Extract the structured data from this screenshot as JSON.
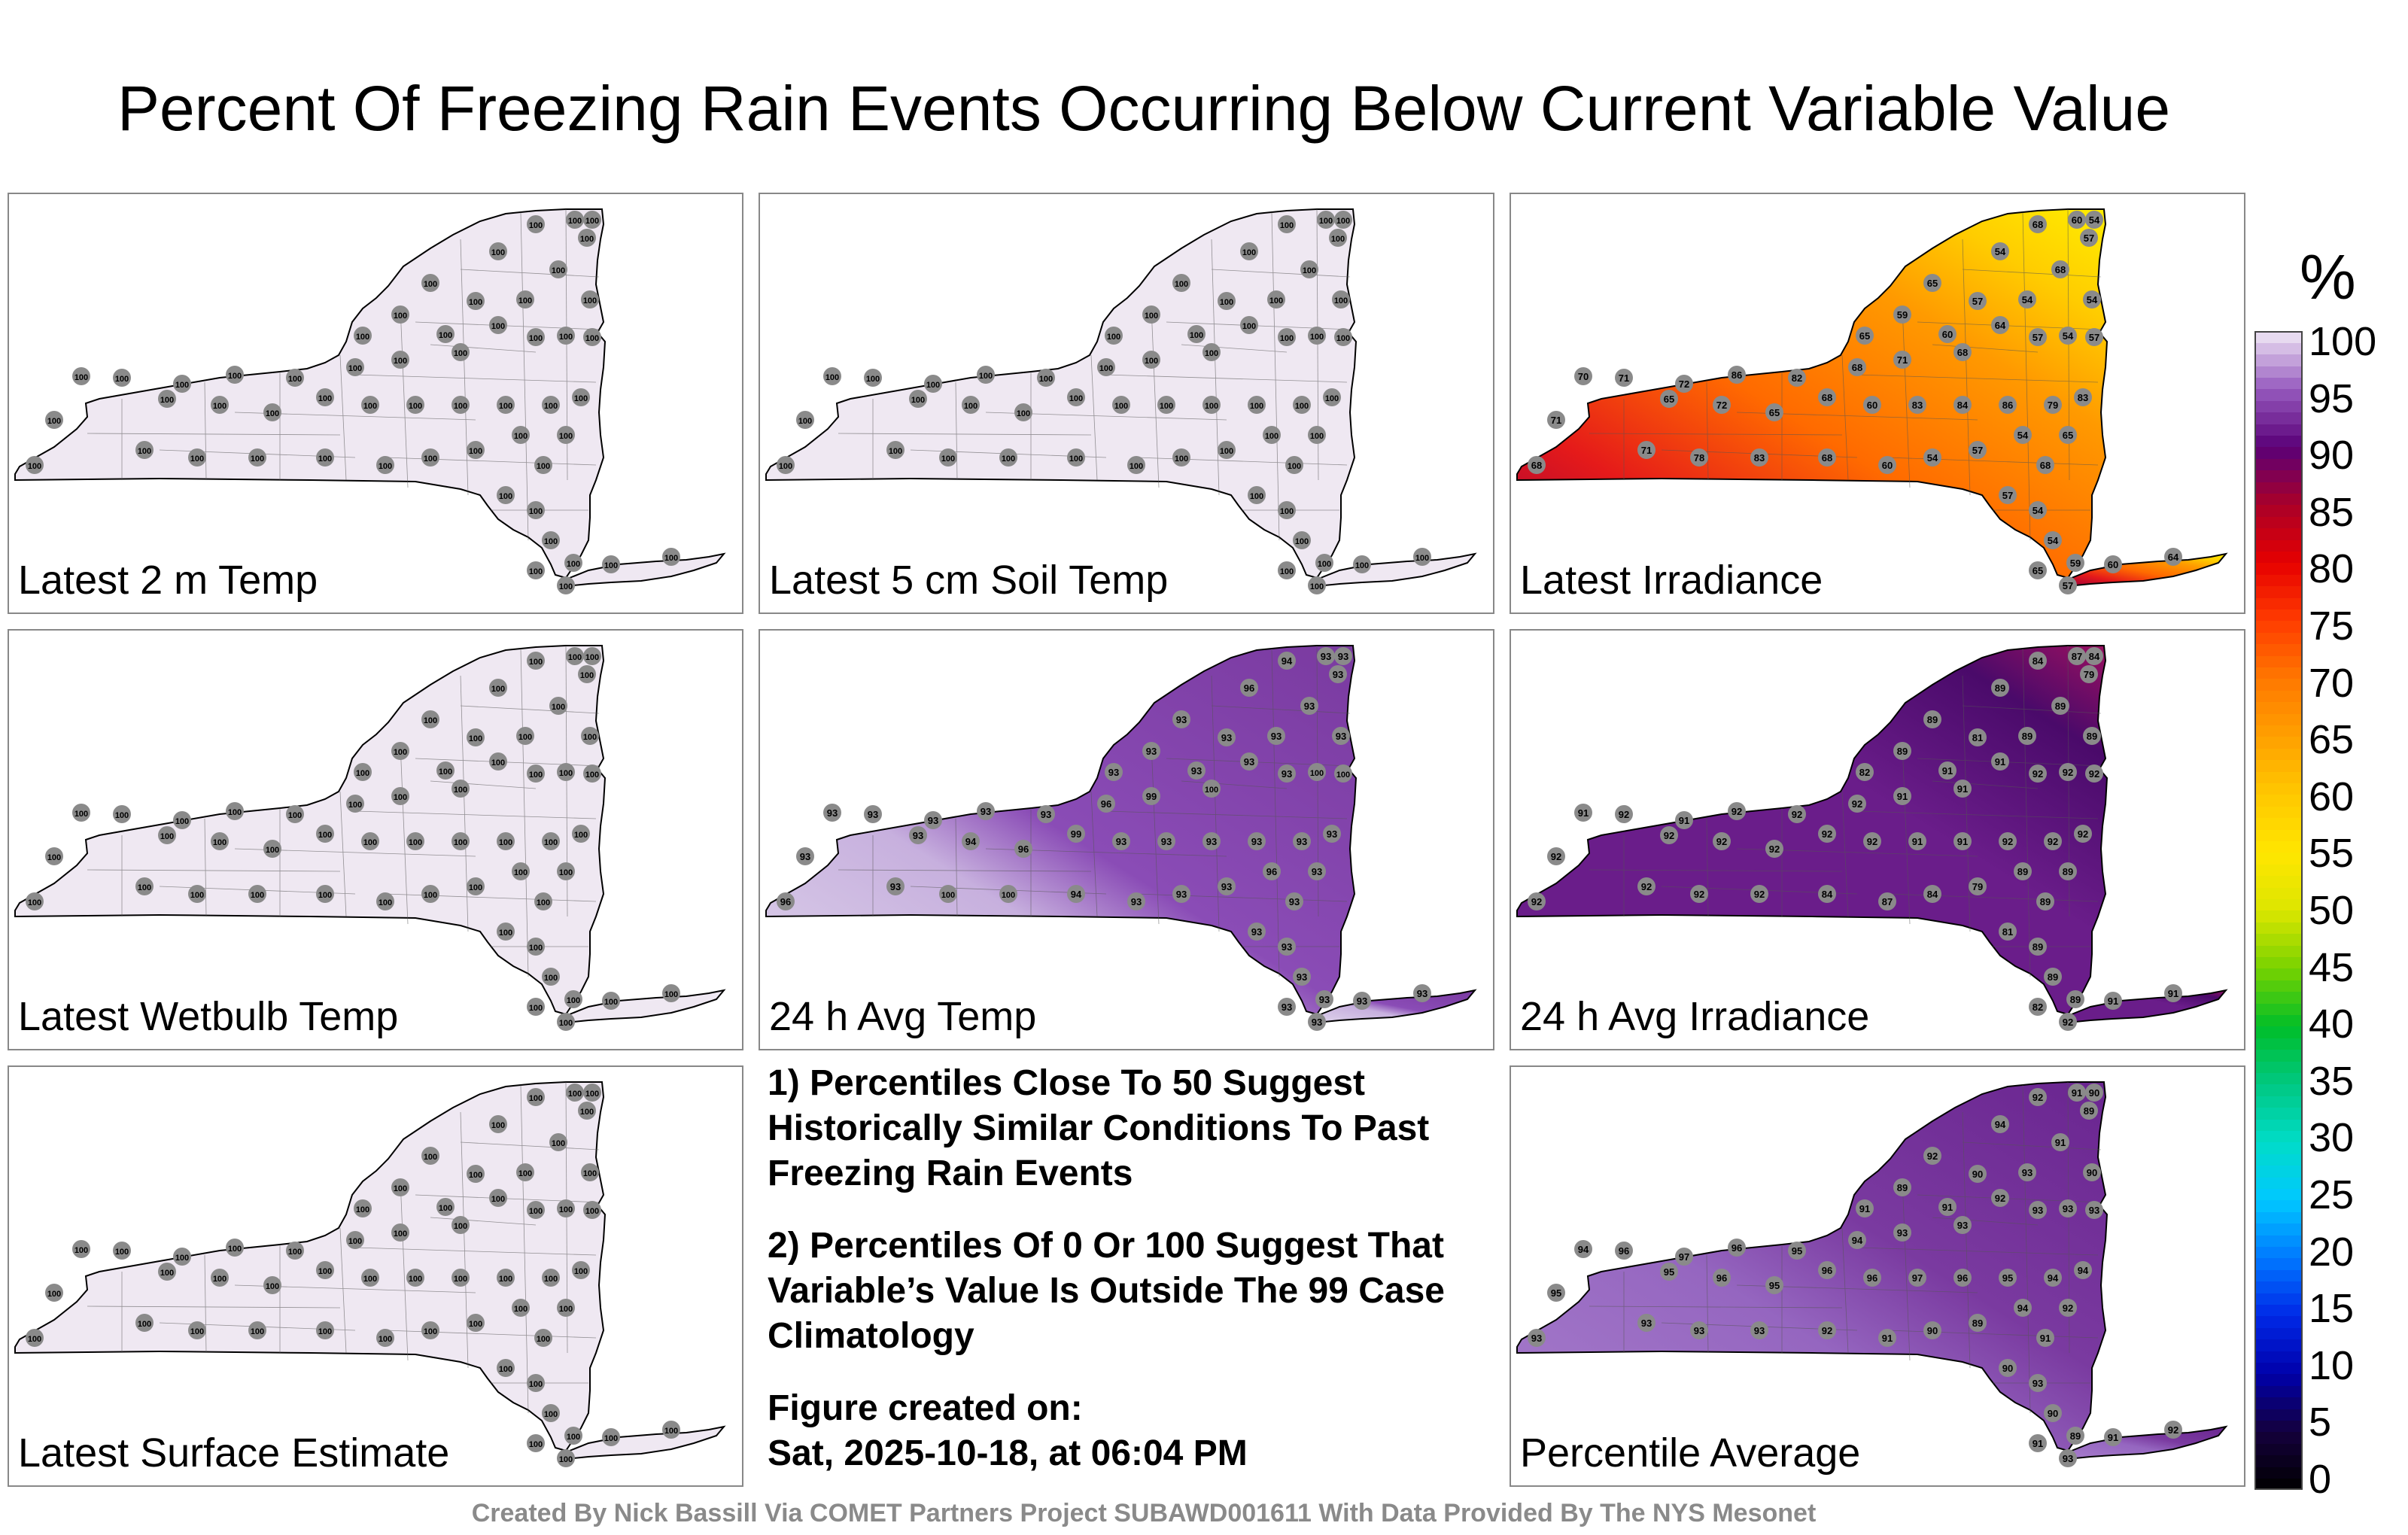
{
  "title": "Percent Of Freezing Rain Events Occurring Below Current Variable Value",
  "colorbar": {
    "unit": "%",
    "ticks": [
      "100",
      "95",
      "90",
      "85",
      "80",
      "75",
      "70",
      "65",
      "60",
      "55",
      "50",
      "45",
      "40",
      "35",
      "30",
      "25",
      "20",
      "15",
      "10",
      "5",
      "0"
    ]
  },
  "panels": [
    {
      "label": "Latest 2 m Temp",
      "fill": "#efe8f2",
      "gradient": "none",
      "values": [
        "100",
        "100",
        "100",
        "100",
        "100",
        "100",
        "100",
        "100",
        "100",
        "100",
        "100",
        "100",
        "100",
        "100",
        "100",
        "100",
        "100",
        "100",
        "100",
        "100",
        "100",
        "100",
        "100",
        "100",
        "100",
        "100",
        "100",
        "100",
        "100",
        "100",
        "100",
        "100",
        "100",
        "100",
        "100",
        "100",
        "100",
        "100",
        "100",
        "100"
      ]
    },
    {
      "label": "Latest 5 cm Soil Temp",
      "fill": "#efe8f2",
      "gradient": "none",
      "values": [
        "100",
        "100",
        "100",
        "100",
        "100",
        "100",
        "100",
        "100",
        "100",
        "100",
        "100",
        "100",
        "100",
        "100",
        "100",
        "100",
        "100",
        "100",
        "100",
        "100",
        "100",
        "100",
        "100",
        "100",
        "100",
        "100",
        "100",
        "100",
        "100",
        "100",
        "100",
        "100",
        "100",
        "100",
        "100",
        "100",
        "100",
        "100",
        "100",
        "100"
      ]
    },
    {
      "label": "Latest Irradiance",
      "fill": "#f08a10",
      "gradient": "irr",
      "values": [
        "68",
        "60",
        "54",
        "57",
        "54",
        "65",
        "68",
        "57",
        "54",
        "54",
        "65",
        "59",
        "60",
        "64",
        "57",
        "54",
        "57",
        "68",
        "71",
        "68",
        "82",
        "86",
        "72",
        "71",
        "70",
        "65",
        "72",
        "65",
        "68",
        "60",
        "83",
        "84",
        "86",
        "79",
        "83",
        "71",
        "68",
        "71",
        "78",
        "83"
      ]
    },
    {
      "label": "Latest Wetbulb Temp",
      "fill": "#efe8f2",
      "gradient": "none",
      "values": [
        "100",
        "100",
        "100",
        "100",
        "100",
        "100",
        "100",
        "100",
        "100",
        "100",
        "100",
        "100",
        "100",
        "100",
        "100",
        "100",
        "100",
        "100",
        "100",
        "100",
        "100",
        "100",
        "100",
        "100",
        "100",
        "100",
        "100",
        "100",
        "100",
        "100",
        "100",
        "100",
        "100",
        "100",
        "100",
        "100",
        "100",
        "100",
        "100",
        "100"
      ]
    },
    {
      "label": "24 h Avg Temp",
      "fill": "#7a3aa0",
      "gradient": "avgtemp",
      "values": [
        "94",
        "93",
        "93",
        "93",
        "96",
        "93",
        "93",
        "93",
        "93",
        "93",
        "93",
        "93",
        "93",
        "93",
        "93",
        "100",
        "100",
        "100",
        "99",
        "96",
        "93",
        "93",
        "93",
        "93",
        "93",
        "93",
        "94",
        "96",
        "99",
        "93",
        "93",
        "93",
        "93",
        "93",
        "93",
        "93",
        "96",
        "93",
        "100",
        "100"
      ]
    },
    {
      "label": "24 h Avg Irradiance",
      "fill": "#6a2590",
      "gradient": "avgirr",
      "values": [
        "84",
        "87",
        "84",
        "79",
        "89",
        "89",
        "89",
        "81",
        "89",
        "89",
        "82",
        "89",
        "91",
        "91",
        "92",
        "92",
        "92",
        "91",
        "91",
        "92",
        "92",
        "92",
        "91",
        "92",
        "91",
        "92",
        "92",
        "92",
        "92",
        "92",
        "91",
        "91",
        "92",
        "92",
        "92",
        "92",
        "92",
        "92",
        "92",
        "92"
      ]
    },
    {
      "label": "Latest Surface Estimate",
      "fill": "#efe8f2",
      "gradient": "none",
      "values": [
        "100",
        "100",
        "100",
        "100",
        "100",
        "100",
        "100",
        "100",
        "100",
        "100",
        "100",
        "100",
        "100",
        "100",
        "100",
        "100",
        "100",
        "100",
        "100",
        "100",
        "100",
        "100",
        "100",
        "100",
        "100",
        "100",
        "100",
        "100",
        "100",
        "100",
        "100",
        "100",
        "100",
        "100",
        "100",
        "100",
        "100",
        "100",
        "100",
        "100"
      ]
    },
    {
      "label": "Percentile Average",
      "fill": "#7a3aa0",
      "gradient": "pavg",
      "values": [
        "92",
        "91",
        "90",
        "89",
        "94",
        "92",
        "91",
        "90",
        "93",
        "90",
        "91",
        "89",
        "91",
        "92",
        "93",
        "93",
        "93",
        "93",
        "93",
        "94",
        "95",
        "96",
        "97",
        "96",
        "94",
        "95",
        "96",
        "95",
        "96",
        "96",
        "97",
        "96",
        "95",
        "94",
        "94",
        "95",
        "93",
        "93",
        "93",
        "93"
      ]
    }
  ],
  "notes": [
    "1) Percentiles Close To 50 Suggest Historically Similar Conditions To Past Freezing Rain Events",
    "2) Percentiles Of 0 Or 100 Suggest That Variable’s Value Is Outside The 99 Case Climatology"
  ],
  "figure_created_label": "Figure created on:",
  "figure_created_value": "Sat, 2025-10-18, at 06:04 PM",
  "credit": "Created By Nick Bassill Via COMET Partners Project SUBAWD001611 With Data Provided By The NYS Mesonet"
}
